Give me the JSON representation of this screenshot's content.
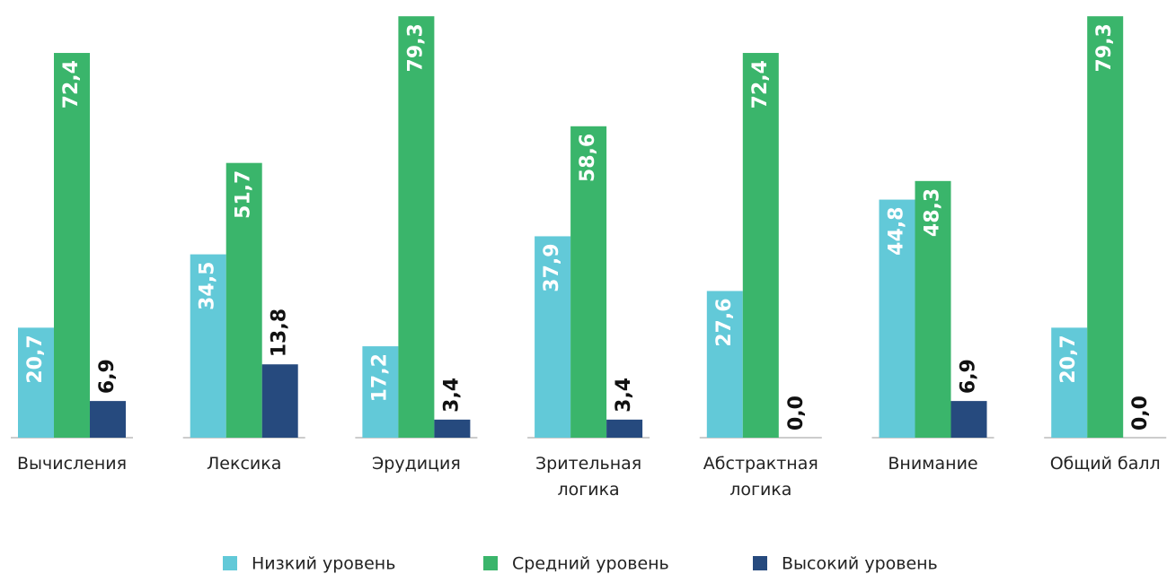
{
  "chart_data": {
    "type": "bar",
    "categories": [
      "Вычисления",
      "Лексика",
      "Эрудиция",
      "Зрительная логика",
      "Абстрактная логика",
      "Внимание",
      "Общий балл"
    ],
    "series": [
      {
        "name": "Низкий уровень",
        "color": "#62c9d8",
        "values": [
          20.7,
          34.5,
          17.2,
          37.9,
          27.6,
          44.8,
          20.7
        ],
        "value_labels": [
          "20,7",
          "34,5",
          "17,2",
          "37,9",
          "27,6",
          "44,8",
          "20,7"
        ]
      },
      {
        "name": "Средний уровень",
        "color": "#3ab56b",
        "values": [
          72.4,
          51.7,
          79.3,
          58.6,
          72.4,
          48.3,
          79.3
        ],
        "value_labels": [
          "72,4",
          "51,7",
          "79,3",
          "58,6",
          "72,4",
          "48,3",
          "79,3"
        ]
      },
      {
        "name": "Высокий уровень",
        "color": "#264a7e",
        "values": [
          6.9,
          13.8,
          3.4,
          3.4,
          0,
          6.9,
          0
        ],
        "value_labels": [
          "6,9",
          "13,8",
          "3,4",
          "3,4",
          "0,0",
          "6,9",
          "0,0"
        ]
      }
    ],
    "ylim": [
      0,
      80
    ]
  }
}
